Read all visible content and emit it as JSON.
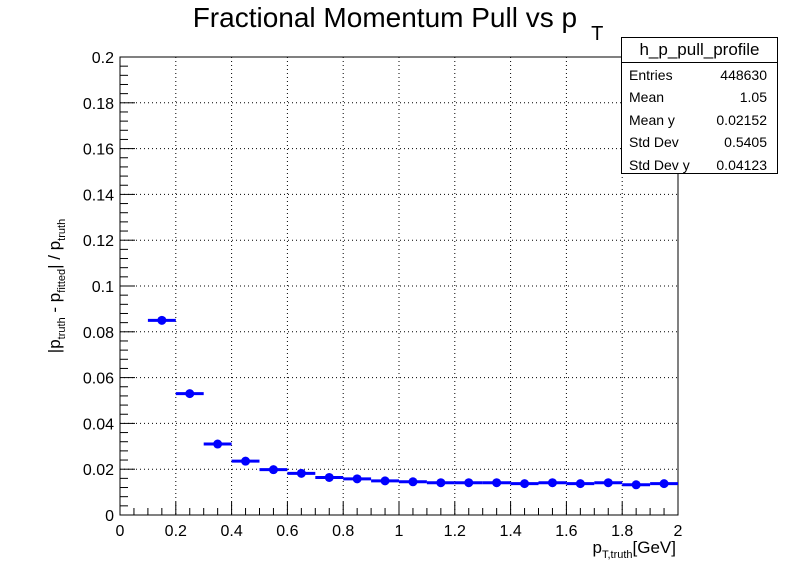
{
  "chart_data": {
    "type": "scatter",
    "title_main": "Fractional Momentum Pull vs p",
    "title_sub": "T",
    "ylabel": "|p_truth - p_fitted| / p_truth",
    "xlabel": "p_T,truth [GeV]",
    "xlim": [
      0,
      2
    ],
    "ylim": [
      0,
      0.2
    ],
    "grid": true,
    "bin_width": 0.1,
    "x": [
      0.15,
      0.25,
      0.35,
      0.45,
      0.55,
      0.65,
      0.75,
      0.85,
      0.95,
      1.05,
      1.15,
      1.25,
      1.35,
      1.45,
      1.55,
      1.65,
      1.75,
      1.85,
      1.95
    ],
    "y": [
      0.085,
      0.053,
      0.031,
      0.0235,
      0.0198,
      0.0182,
      0.0164,
      0.0158,
      0.0149,
      0.0145,
      0.0141,
      0.0141,
      0.0141,
      0.0137,
      0.0141,
      0.0137,
      0.0141,
      0.0132,
      0.0137
    ],
    "x_ticks": [
      0,
      0.2,
      0.4,
      0.6,
      0.8,
      1,
      1.2,
      1.4,
      1.6,
      1.8,
      2
    ],
    "x_tick_labels": [
      "0",
      "0.2",
      "0.4",
      "0.6",
      "0.8",
      "1",
      "1.2",
      "1.4",
      "1.6",
      "1.8",
      "2"
    ],
    "y_ticks": [
      0,
      0.02,
      0.04,
      0.06,
      0.08,
      0.1,
      0.12,
      0.14,
      0.16,
      0.18,
      0.2
    ],
    "y_tick_labels": [
      "0",
      "0.02",
      "0.04",
      "0.06",
      "0.08",
      "0.1",
      "0.12",
      "0.14",
      "0.16",
      "0.18",
      "0.2"
    ],
    "marker_color": "#0000ff"
  },
  "stats_box": {
    "title": "h_p_pull_profile",
    "rows": [
      {
        "label": "Entries",
        "value": "448630"
      },
      {
        "label": "Mean",
        "value": "1.05"
      },
      {
        "label": "Mean y",
        "value": "0.02152"
      },
      {
        "label": "Std Dev",
        "value": "0.5405"
      },
      {
        "label": "Std Dev y",
        "value": "0.04123"
      }
    ]
  }
}
